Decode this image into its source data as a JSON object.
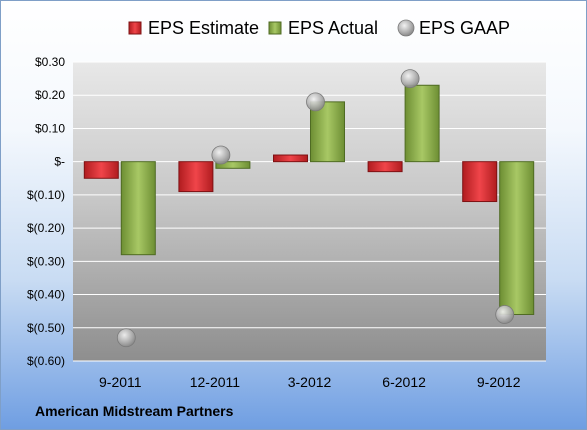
{
  "company_name": "American Midstream Partners",
  "chart_data": {
    "type": "bar",
    "title": "",
    "categories": [
      "9-2011",
      "12-2011",
      "3-2012",
      "6-2012",
      "9-2012"
    ],
    "series": [
      {
        "name": "EPS Estimate",
        "kind": "bar",
        "color": "#e0262a",
        "values": [
          -0.05,
          -0.09,
          0.02,
          -0.03,
          -0.12
        ]
      },
      {
        "name": "EPS Actual",
        "kind": "bar",
        "color": "#8fb34a",
        "values": [
          -0.28,
          -0.02,
          0.18,
          0.23,
          -0.46
        ]
      },
      {
        "name": "EPS GAAP",
        "kind": "marker",
        "color": "#b8b8b8",
        "values": [
          -0.53,
          0.02,
          0.18,
          0.25,
          -0.46
        ]
      }
    ],
    "ylim": [
      -0.6,
      0.3
    ],
    "yticks": [
      0.3,
      0.2,
      0.1,
      0.0,
      -0.1,
      -0.2,
      -0.3,
      -0.4,
      -0.5,
      -0.6
    ],
    "ytick_labels": [
      "$0.30",
      "$0.20",
      "$0.10",
      "$-",
      "$(0.10)",
      "$(0.20)",
      "$(0.30)",
      "$(0.40)",
      "$(0.50)",
      "$(0.60)"
    ],
    "grid": true,
    "legend_position": "top"
  }
}
